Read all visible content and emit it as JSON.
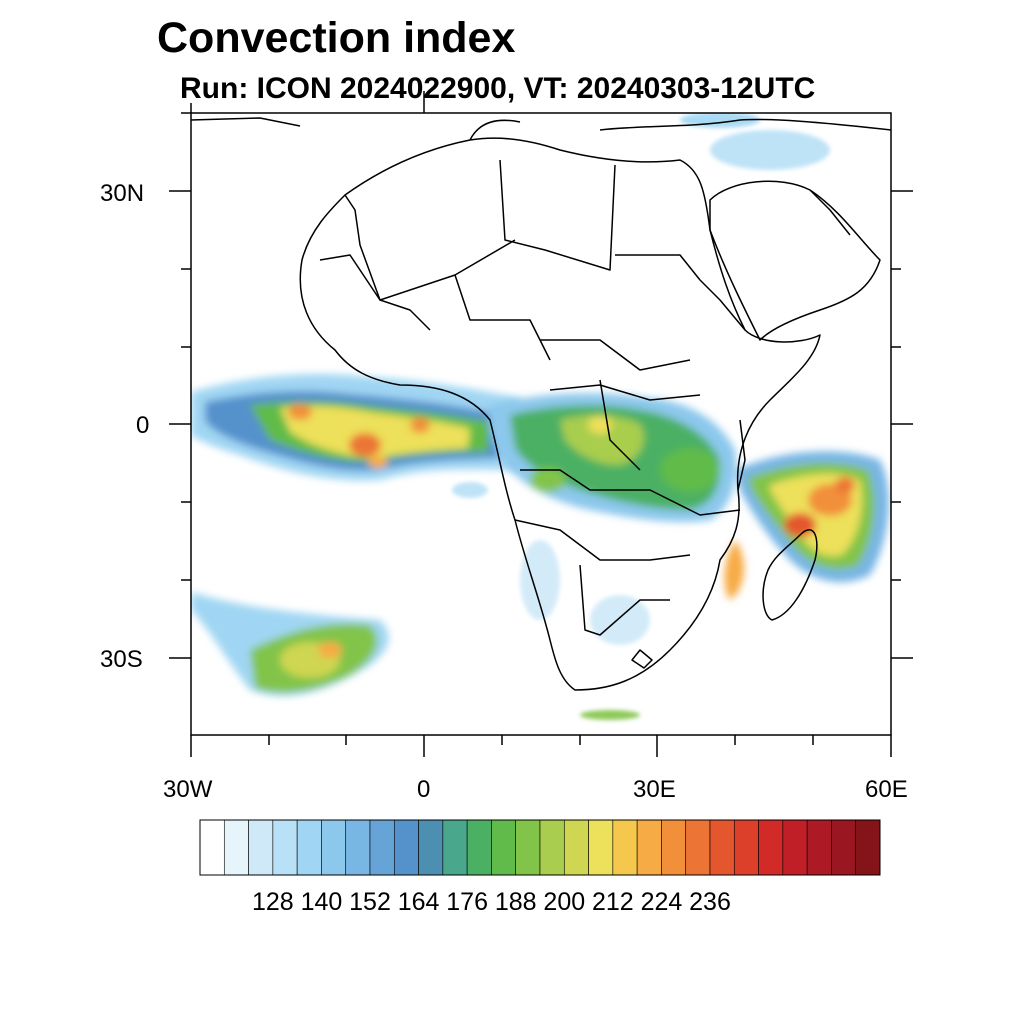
{
  "title": "Convection index",
  "subtitle": "Run: ICON 2024022900,  VT: 20240303-12UTC",
  "axes": {
    "lat_labels": [
      "30N",
      "0",
      "30S"
    ],
    "lon_labels": [
      "30W",
      "0",
      "30E",
      "60E"
    ],
    "lat_range": [
      -40,
      40
    ],
    "lon_range": [
      -30,
      60
    ]
  },
  "colorbar": {
    "labels": [
      "128",
      "140",
      "152",
      "164",
      "176",
      "188",
      "200",
      "212",
      "224",
      "236"
    ],
    "colors": [
      "#ffffff",
      "#e6f4fc",
      "#cfe9f8",
      "#b8e0f6",
      "#a0d6f3",
      "#8cc8ec",
      "#78b6e4",
      "#66a4d8",
      "#5592cc",
      "#4c8fb0",
      "#49a78c",
      "#4cb064",
      "#60bb4a",
      "#82c449",
      "#a9cd4e",
      "#cfd651",
      "#ede05a",
      "#f5c74d",
      "#f7ab44",
      "#f28f3b",
      "#ec7434",
      "#e4572e",
      "#dc3f2a",
      "#d12a27",
      "#c11f28",
      "#ad1a25",
      "#9a1620",
      "#841419"
    ]
  },
  "features": {
    "coastline": "coastline-and-borders",
    "fill": "convection-index-shading"
  }
}
